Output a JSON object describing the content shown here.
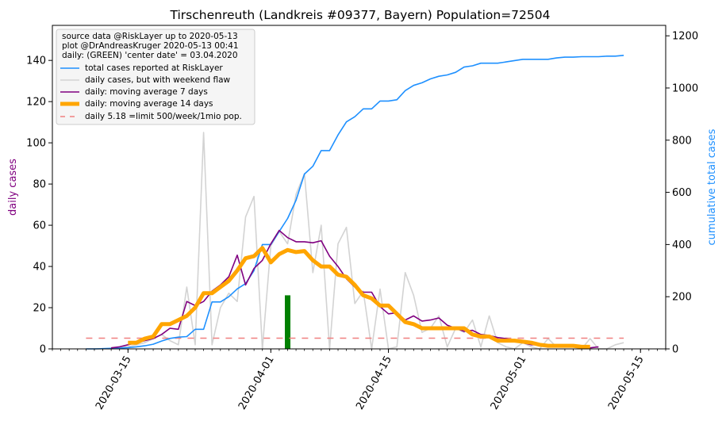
{
  "chart_data": {
    "type": "line",
    "title": "Tirschenreuth (Landkreis #09377, Bayern) Population=72504",
    "ylabel_left": "daily cases",
    "ylabel_right": "cumulative total cases",
    "ylim_left": [
      0,
      157
    ],
    "ylim_right": [
      0,
      1240
    ],
    "xlim": [
      "2020-03-06",
      "2020-05-18"
    ],
    "left_ticks": [
      0,
      20,
      40,
      60,
      80,
      100,
      120,
      140
    ],
    "right_ticks": [
      0,
      200,
      400,
      600,
      800,
      1000,
      1200
    ],
    "x_ticks": [
      "2020-03-15",
      "2020-04-01",
      "2020-04-15",
      "2020-05-01",
      "2020-05-15"
    ],
    "legend_position": "upper-left",
    "legend_info": [
      "source data @RiskLayer up to 2020-05-13",
      "plot @DrAndreasKruger 2020-05-13 00:41",
      "daily: (GREEN) 'center date' = 03.04.2020"
    ],
    "series": [
      {
        "name": "total cases reported at RiskLayer",
        "color": "#1e90ff",
        "axis": "right",
        "x": [
          "2020-03-10",
          "2020-03-11",
          "2020-03-12",
          "2020-03-13",
          "2020-03-14",
          "2020-03-15",
          "2020-03-16",
          "2020-03-17",
          "2020-03-18",
          "2020-03-19",
          "2020-03-20",
          "2020-03-21",
          "2020-03-22",
          "2020-03-23",
          "2020-03-24",
          "2020-03-25",
          "2020-03-26",
          "2020-03-27",
          "2020-03-28",
          "2020-03-29",
          "2020-03-30",
          "2020-03-31",
          "2020-04-01",
          "2020-04-02",
          "2020-04-03",
          "2020-04-04",
          "2020-04-05",
          "2020-04-06",
          "2020-04-07",
          "2020-04-08",
          "2020-04-09",
          "2020-04-10",
          "2020-04-11",
          "2020-04-12",
          "2020-04-13",
          "2020-04-14",
          "2020-04-15",
          "2020-04-16",
          "2020-04-17",
          "2020-04-18",
          "2020-04-19",
          "2020-04-20",
          "2020-04-21",
          "2020-04-22",
          "2020-04-23",
          "2020-04-24",
          "2020-04-25",
          "2020-04-26",
          "2020-04-27",
          "2020-04-28",
          "2020-04-29",
          "2020-04-30",
          "2020-05-01",
          "2020-05-02",
          "2020-05-03",
          "2020-05-04",
          "2020-05-05",
          "2020-05-06",
          "2020-05-07",
          "2020-05-08",
          "2020-05-09",
          "2020-05-10",
          "2020-05-11",
          "2020-05-12",
          "2020-05-13"
        ],
        "values": [
          0,
          0,
          1,
          2,
          3,
          5,
          8,
          12,
          18,
          30,
          40,
          45,
          47,
          75,
          75,
          180,
          180,
          200,
          230,
          250,
          300,
          400,
          400,
          450,
          500,
          570,
          670,
          700,
          760,
          760,
          820,
          870,
          890,
          920,
          920,
          950,
          950,
          955,
          990,
          1010,
          1020,
          1035,
          1045,
          1050,
          1060,
          1080,
          1085,
          1095,
          1095,
          1095,
          1100,
          1105,
          1110,
          1110,
          1110,
          1110,
          1115,
          1118,
          1118,
          1120,
          1120,
          1120,
          1122,
          1122,
          1125
        ]
      },
      {
        "name": "daily cases, but with weekend flaw",
        "color": "#d3d3d3",
        "axis": "left",
        "x": [
          "2020-03-10",
          "2020-03-11",
          "2020-03-12",
          "2020-03-13",
          "2020-03-14",
          "2020-03-15",
          "2020-03-16",
          "2020-03-17",
          "2020-03-18",
          "2020-03-19",
          "2020-03-20",
          "2020-03-21",
          "2020-03-22",
          "2020-03-23",
          "2020-03-24",
          "2020-03-25",
          "2020-03-26",
          "2020-03-27",
          "2020-03-28",
          "2020-03-29",
          "2020-03-30",
          "2020-03-31",
          "2020-04-01",
          "2020-04-02",
          "2020-04-03",
          "2020-04-04",
          "2020-04-05",
          "2020-04-06",
          "2020-04-07",
          "2020-04-08",
          "2020-04-09",
          "2020-04-10",
          "2020-04-11",
          "2020-04-12",
          "2020-04-13",
          "2020-04-14",
          "2020-04-15",
          "2020-04-16",
          "2020-04-17",
          "2020-04-18",
          "2020-04-19",
          "2020-04-20",
          "2020-04-21",
          "2020-04-22",
          "2020-04-23",
          "2020-04-24",
          "2020-04-25",
          "2020-04-26",
          "2020-04-27",
          "2020-04-28",
          "2020-04-29",
          "2020-04-30",
          "2020-05-01",
          "2020-05-02",
          "2020-05-03",
          "2020-05-04",
          "2020-05-05",
          "2020-05-06",
          "2020-05-07",
          "2020-05-08",
          "2020-05-09",
          "2020-05-10",
          "2020-05-11",
          "2020-05-12",
          "2020-05-13"
        ],
        "values": [
          0,
          0,
          0,
          0,
          1,
          1,
          2,
          3,
          5,
          7,
          4,
          2,
          30,
          2,
          105,
          2,
          20,
          27,
          23,
          64,
          74,
          0,
          50,
          57,
          51,
          75,
          85,
          37,
          60,
          0,
          51,
          59,
          22,
          28,
          0,
          29,
          0,
          1,
          37,
          26,
          8,
          10,
          16,
          1,
          10,
          8,
          14,
          1,
          16,
          3,
          1,
          0,
          3,
          1,
          0,
          5,
          1,
          1,
          1,
          0,
          5,
          0,
          0,
          2,
          3
        ]
      },
      {
        "name": "daily: moving average 7 days",
        "color": "#800080",
        "axis": "left",
        "x": [
          "2020-03-13",
          "2020-03-14",
          "2020-03-15",
          "2020-03-16",
          "2020-03-17",
          "2020-03-18",
          "2020-03-19",
          "2020-03-20",
          "2020-03-21",
          "2020-03-22",
          "2020-03-23",
          "2020-03-24",
          "2020-03-25",
          "2020-03-26",
          "2020-03-27",
          "2020-03-28",
          "2020-03-29",
          "2020-03-30",
          "2020-03-31",
          "2020-04-01",
          "2020-04-02",
          "2020-04-03",
          "2020-04-04",
          "2020-04-05",
          "2020-04-06",
          "2020-04-07",
          "2020-04-08",
          "2020-04-09",
          "2020-04-10",
          "2020-04-11",
          "2020-04-12",
          "2020-04-13",
          "2020-04-14",
          "2020-04-15",
          "2020-04-16",
          "2020-04-17",
          "2020-04-18",
          "2020-04-19",
          "2020-04-20",
          "2020-04-21",
          "2020-04-22",
          "2020-04-23",
          "2020-04-24",
          "2020-04-25",
          "2020-04-26",
          "2020-04-27",
          "2020-04-28",
          "2020-04-29",
          "2020-04-30",
          "2020-05-01",
          "2020-05-02",
          "2020-05-03",
          "2020-05-04",
          "2020-05-05",
          "2020-05-06",
          "2020-05-07",
          "2020-05-08",
          "2020-05-09",
          "2020-05-10"
        ],
        "values": [
          0.5,
          1,
          2,
          3,
          4,
          5,
          7,
          10,
          9.5,
          23,
          21,
          23,
          28,
          31,
          35,
          45.5,
          31,
          39,
          43,
          51,
          57.5,
          54,
          52,
          52,
          51.5,
          52.5,
          45,
          40,
          34,
          30,
          27.5,
          27.5,
          20.5,
          17,
          17.5,
          14,
          16,
          13.5,
          14,
          15,
          11.5,
          10,
          8.5,
          9,
          7,
          6.5,
          5.5,
          5,
          4,
          3,
          2,
          2,
          2,
          1.5,
          1,
          1,
          1,
          0.5,
          1
        ]
      },
      {
        "name": "daily: moving average 14 days",
        "color": "#ffa500",
        "axis": "left",
        "x": [
          "2020-03-15",
          "2020-03-16",
          "2020-03-17",
          "2020-03-18",
          "2020-03-19",
          "2020-03-20",
          "2020-03-21",
          "2020-03-22",
          "2020-03-23",
          "2020-03-24",
          "2020-03-25",
          "2020-03-26",
          "2020-03-27",
          "2020-03-28",
          "2020-03-29",
          "2020-03-30",
          "2020-03-31",
          "2020-04-01",
          "2020-04-02",
          "2020-04-03",
          "2020-04-04",
          "2020-04-05",
          "2020-04-06",
          "2020-04-07",
          "2020-04-08",
          "2020-04-09",
          "2020-04-10",
          "2020-04-11",
          "2020-04-12",
          "2020-04-13",
          "2020-04-14",
          "2020-04-15",
          "2020-04-16",
          "2020-04-17",
          "2020-04-18",
          "2020-04-19",
          "2020-04-20",
          "2020-04-21",
          "2020-04-22",
          "2020-04-23",
          "2020-04-24",
          "2020-04-25",
          "2020-04-26",
          "2020-04-27",
          "2020-04-28",
          "2020-04-29",
          "2020-04-30",
          "2020-05-01",
          "2020-05-02",
          "2020-05-03",
          "2020-05-04",
          "2020-05-05",
          "2020-05-06",
          "2020-05-07",
          "2020-05-08",
          "2020-05-09"
        ],
        "values": [
          3,
          3,
          5,
          6,
          12,
          12,
          14,
          16,
          20,
          27,
          27,
          30,
          33,
          38,
          44,
          45,
          49,
          42,
          46,
          48,
          47,
          47.5,
          43,
          40,
          40,
          36,
          35,
          31,
          26,
          24.5,
          21,
          21,
          17,
          13,
          12,
          10,
          10,
          10,
          10,
          10,
          10,
          7,
          6,
          6,
          4,
          4,
          4,
          3.5,
          3,
          2,
          1.5,
          1.5,
          1.5,
          1.5,
          1,
          1
        ]
      },
      {
        "name": "daily 5.18 =limit 500/week/1mio pop.",
        "color": "#f08080",
        "axis": "left",
        "style": "dashed",
        "x": [
          "2020-03-10",
          "2020-05-13"
        ],
        "values": [
          5.18,
          5.18
        ]
      }
    ],
    "highlight_bar": {
      "date": "2020-04-03",
      "value": 26,
      "color": "#008000",
      "axis": "left"
    }
  }
}
